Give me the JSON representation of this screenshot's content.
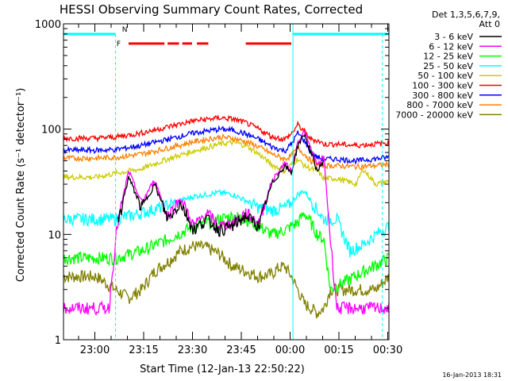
{
  "chart_data": {
    "type": "line",
    "title": "HESSI Observing Summary Count Rates, Corrected",
    "xlabel": "Start Time (12-Jan-13 22:50:22)",
    "ylabel": "Corrected Count Rate (s⁻¹ detector⁻¹)",
    "yscale": "log",
    "ylim": [
      1,
      1000
    ],
    "xlim_minutes_from_start": [
      0,
      100
    ],
    "x_ticks": [
      "23:00",
      "23:15",
      "23:30",
      "23:45",
      "00:00",
      "00:15",
      "00:30"
    ],
    "y_ticks": [
      "1",
      "10",
      "100",
      "1000"
    ],
    "legend_header": [
      "Det 1,3,5,6,7,9,",
      "Att 0"
    ],
    "legend_position": "right",
    "timestamp": "16-Jan-2013 18:31",
    "flag_labels": {
      "night": "N",
      "flare": "F"
    },
    "series": [
      {
        "name": "3 - 6 keV",
        "color": "#000000",
        "x": [
          0,
          16,
          16.5,
          20,
          24,
          28,
          32,
          36,
          40,
          44,
          48,
          52,
          56,
          60,
          64,
          68,
          70,
          72,
          74,
          76,
          78,
          80,
          80.5,
          100
        ],
        "y": [
          null,
          null,
          12,
          35,
          18,
          30,
          14,
          20,
          11,
          14,
          11,
          12,
          15,
          12,
          30,
          45,
          38,
          70,
          90,
          60,
          40,
          50,
          null,
          null
        ]
      },
      {
        "name": "6 - 12 keV",
        "color": "#ff00ff",
        "x": [
          0,
          14,
          16,
          16.5,
          20,
          24,
          28,
          32,
          36,
          40,
          44,
          48,
          52,
          56,
          60,
          64,
          68,
          70,
          72,
          74,
          76,
          78,
          80,
          82,
          84,
          100
        ],
        "y": [
          2,
          2,
          9,
          12,
          40,
          20,
          33,
          15,
          22,
          12,
          16,
          12,
          13,
          16,
          13,
          32,
          48,
          40,
          75,
          95,
          65,
          45,
          55,
          9,
          2,
          2
        ]
      },
      {
        "name": "12 - 25 keV",
        "color": "#00ff00",
        "x": [
          0,
          10,
          16,
          24,
          32,
          40,
          48,
          52,
          56,
          60,
          64,
          68,
          70,
          72,
          74,
          76,
          78,
          80,
          82,
          100
        ],
        "y": [
          6,
          6,
          6,
          7,
          9,
          12,
          14,
          15,
          14,
          12,
          10,
          11,
          12,
          13,
          16,
          13,
          10,
          9,
          3,
          6
        ]
      },
      {
        "name": "25 - 50 keV",
        "color": "#00ffff",
        "x": [
          0,
          10,
          16,
          24,
          32,
          40,
          48,
          52,
          56,
          60,
          64,
          68,
          70,
          72,
          74,
          76,
          78,
          80,
          84,
          88,
          92,
          96,
          100
        ],
        "y": [
          14,
          14,
          14,
          16,
          19,
          23,
          25,
          24,
          21,
          18,
          17,
          18,
          20,
          24,
          26,
          21,
          17,
          14,
          14,
          7,
          8,
          10,
          12
        ]
      },
      {
        "name": "50 - 100 keV",
        "color": "#cccc00",
        "x": [
          0,
          10,
          16,
          24,
          32,
          40,
          48,
          52,
          56,
          60,
          64,
          68,
          70,
          72,
          74,
          76,
          78,
          80,
          84,
          90,
          92,
          96,
          100
        ],
        "y": [
          35,
          35,
          38,
          42,
          52,
          62,
          72,
          75,
          70,
          58,
          46,
          40,
          46,
          52,
          45,
          42,
          40,
          34,
          34,
          30,
          42,
          30,
          32
        ]
      },
      {
        "name": "100 - 300 keV",
        "color": "#ff0000",
        "x": [
          0,
          10,
          16,
          24,
          32,
          40,
          48,
          52,
          56,
          60,
          64,
          68,
          70,
          72,
          74,
          76,
          78,
          80,
          84,
          90,
          100
        ],
        "y": [
          82,
          82,
          84,
          92,
          105,
          120,
          128,
          125,
          115,
          100,
          85,
          80,
          90,
          110,
          95,
          80,
          78,
          72,
          72,
          70,
          74
        ]
      },
      {
        "name": "300 - 800 keV",
        "color": "#0000ff",
        "x": [
          0,
          10,
          16,
          24,
          32,
          40,
          48,
          52,
          56,
          60,
          64,
          68,
          70,
          72,
          74,
          76,
          78,
          80,
          84,
          90,
          100
        ],
        "y": [
          63,
          63,
          64,
          70,
          80,
          92,
          100,
          98,
          90,
          80,
          68,
          62,
          72,
          92,
          78,
          60,
          54,
          52,
          52,
          50,
          54
        ]
      },
      {
        "name": "800 - 7000 keV",
        "color": "#ff8000",
        "x": [
          0,
          10,
          16,
          24,
          32,
          40,
          48,
          52,
          56,
          60,
          64,
          68,
          70,
          72,
          74,
          76,
          78,
          80,
          84,
          90,
          100
        ],
        "y": [
          53,
          53,
          54,
          58,
          66,
          76,
          84,
          82,
          76,
          68,
          58,
          52,
          56,
          66,
          58,
          50,
          47,
          45,
          45,
          44,
          46
        ]
      },
      {
        "name": "7000 - 20000 keV",
        "color": "#808000",
        "x": [
          0,
          10,
          16,
          20,
          24,
          28,
          32,
          36,
          40,
          44,
          48,
          52,
          56,
          60,
          64,
          66,
          68,
          70,
          72,
          74,
          76,
          78,
          80,
          82,
          84,
          88,
          92,
          96,
          100
        ],
        "y": [
          4,
          4,
          3,
          2.5,
          3,
          4.5,
          5.5,
          7,
          7.8,
          7.5,
          6.5,
          5,
          4.5,
          4,
          4.2,
          4.8,
          5,
          4,
          3,
          2.2,
          2,
          1.8,
          2,
          3,
          3,
          3,
          3,
          3,
          4
        ]
      }
    ]
  }
}
